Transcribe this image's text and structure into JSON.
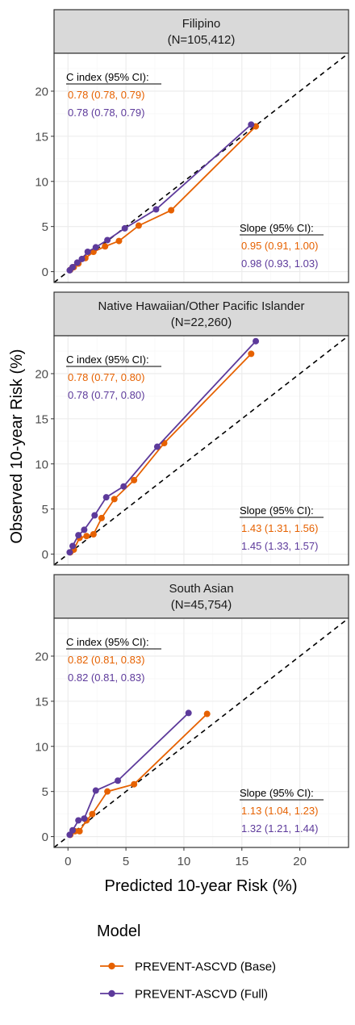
{
  "colors": {
    "base": "#E66100",
    "full": "#5D3A9B",
    "strip_bg": "#D9D9D9",
    "grid_major": "#EBEBEB",
    "grid_minor": "#F5F5F5",
    "frame": "#333333",
    "tick_text": "#4D4D4D"
  },
  "chart_data": {
    "type": "line",
    "xlabel": "Predicted 10-year Risk (%)",
    "ylabel": "Observed 10-year Risk (%)",
    "xlim": [
      -1.2,
      24.2
    ],
    "ylim": [
      -1.2,
      24.2
    ],
    "x_ticks": [
      0,
      5,
      10,
      15,
      20
    ],
    "y_ticks": [
      0,
      5,
      10,
      15,
      20
    ],
    "grid": true,
    "reference_line": "identity, dashed",
    "legend": {
      "title": "Model",
      "placement": "bottom",
      "entries": [
        "PREVENT-ASCVD (Base)",
        "PREVENT-ASCVD (Full)"
      ]
    },
    "panels": [
      {
        "title": "Filipino",
        "n_label": "(N=105,412)",
        "c_index_label": "C index (95% CI):",
        "slope_label": "Slope (95% CI):",
        "series": [
          {
            "name": "PREVENT-ASCVD (Base)",
            "c_index": "0.78 (0.78, 0.79)",
            "slope": "0.95 (0.91, 1.00)",
            "x": [
              0.2,
              0.5,
              0.9,
              1.5,
              2.2,
              3.2,
              4.4,
              6.1,
              8.9,
              16.2
            ],
            "y": [
              0.2,
              0.5,
              0.9,
              1.5,
              2.2,
              2.8,
              3.4,
              5.1,
              6.8,
              16.1
            ]
          },
          {
            "name": "PREVENT-ASCVD (Full)",
            "c_index": "0.78 (0.78, 0.79)",
            "slope": "0.98 (0.93, 1.03)",
            "x": [
              0.15,
              0.4,
              0.8,
              1.2,
              1.7,
              2.4,
              3.4,
              4.9,
              7.6,
              15.8
            ],
            "y": [
              0.15,
              0.5,
              1.0,
              1.4,
              2.2,
              2.7,
              3.5,
              4.8,
              6.9,
              16.3
            ]
          }
        ]
      },
      {
        "title": "Native Hawaiian/Other Pacific Islander",
        "n_label": "(N=22,260)",
        "c_index_label": "C index (95% CI):",
        "slope_label": "Slope (95% CI):",
        "series": [
          {
            "name": "PREVENT-ASCVD (Base)",
            "c_index": "0.78 (0.77, 0.80)",
            "slope": "1.43 (1.31, 1.56)",
            "x": [
              0.2,
              0.5,
              1.0,
              1.6,
              2.2,
              2.9,
              4.0,
              5.7,
              8.3,
              15.8
            ],
            "y": [
              0.2,
              0.5,
              1.8,
              2.0,
              2.2,
              4.0,
              6.1,
              8.2,
              12.3,
              22.2
            ]
          },
          {
            "name": "PREVENT-ASCVD (Full)",
            "c_index": "0.78 (0.77, 0.80)",
            "slope": "1.45 (1.33, 1.57)",
            "x": [
              0.15,
              0.4,
              0.9,
              1.4,
              2.3,
              3.3,
              4.8,
              7.7,
              16.2
            ],
            "y": [
              0.2,
              0.9,
              2.1,
              2.7,
              4.3,
              6.3,
              7.5,
              11.9,
              23.6
            ]
          }
        ]
      },
      {
        "title": "South Asian",
        "n_label": "(N=45,754)",
        "c_index_label": "C index (95% CI):",
        "slope_label": "Slope (95% CI):",
        "series": [
          {
            "name": "PREVENT-ASCVD (Base)",
            "c_index": "0.82 (0.81, 0.83)",
            "slope": "1.13 (1.04, 1.23)",
            "x": [
              0.2,
              0.6,
              1.0,
              1.6,
              2.1,
              3.4,
              5.7,
              12.0
            ],
            "y": [
              0.2,
              0.6,
              0.6,
              1.8,
              2.5,
              5.0,
              5.8,
              13.6
            ]
          },
          {
            "name": "PREVENT-ASCVD (Full)",
            "c_index": "0.82 (0.81, 0.83)",
            "slope": "1.32 (1.21, 1.44)",
            "x": [
              0.15,
              0.4,
              0.9,
              1.4,
              2.4,
              4.3,
              10.4
            ],
            "y": [
              0.2,
              0.7,
              1.8,
              2.0,
              5.1,
              6.2,
              13.7
            ]
          }
        ]
      }
    ]
  }
}
